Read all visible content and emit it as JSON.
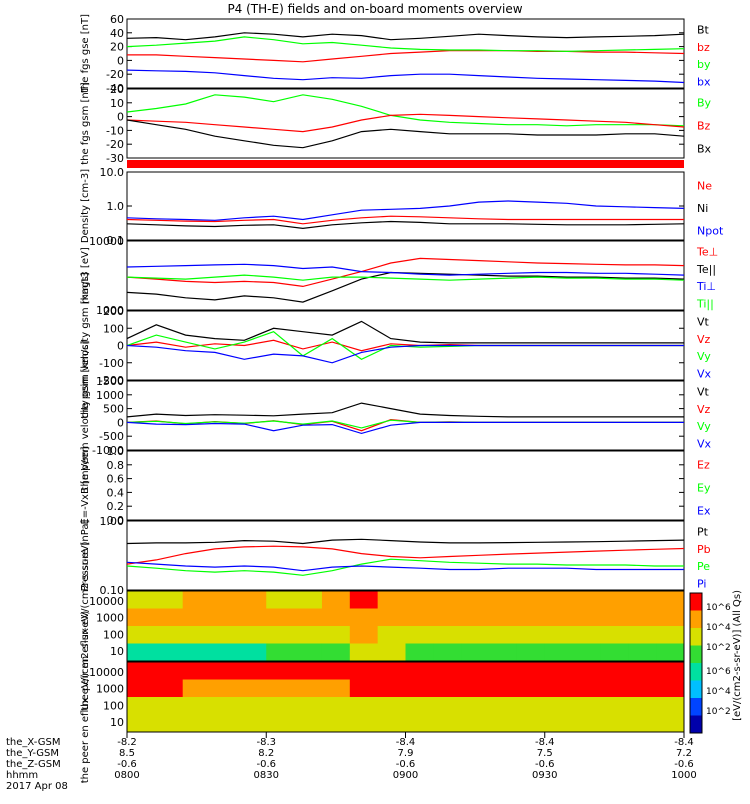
{
  "title": "P4 (TH-E) fields and on-board moments overview",
  "colorbar_label": "[eV/(cm2-s-sr-eV)] (All Qs)",
  "colorbar_ticks": [
    "10^6",
    "10^4",
    "10^2"
  ],
  "footer_row_labels": [
    "the_X-GSM",
    "the_Y-GSM",
    "the_Z-GSM",
    "hhmm",
    "2017 Apr 08"
  ],
  "footer_columns": [
    {
      "x": "-8.2",
      "y": "8.5",
      "z": "-0.6",
      "t": "0800"
    },
    {
      "x": "-8.3",
      "y": "8.2",
      "z": "-0.6",
      "t": "0830"
    },
    {
      "x": "-8.4",
      "y": "7.9",
      "z": "-0.6",
      "t": "0900"
    },
    {
      "x": "-8.4",
      "y": "7.5",
      "z": "-0.6",
      "t": "0930"
    },
    {
      "x": "-8.4",
      "y": "7.2",
      "z": "-0.6",
      "t": "1000"
    }
  ],
  "colors": {
    "black": "#000000",
    "red": "#ff0000",
    "green": "#00ff00",
    "blue": "#0000ff"
  },
  "chart_data": {
    "type": "line",
    "x_range": [
      "0800",
      "1000"
    ],
    "panels": [
      {
        "ylabel": "the fgs gse [nT]",
        "ylim": [
          -40,
          60
        ],
        "yticks": [
          "60",
          "40",
          "20",
          "0",
          "-20",
          "-40"
        ],
        "series": [
          {
            "name": "Bt",
            "color": "black",
            "values": [
              32,
              33,
              30,
              34,
              40,
              38,
              34,
              38,
              36,
              30,
              32,
              35,
              38,
              36,
              34,
              33,
              34,
              35,
              36,
              38
            ]
          },
          {
            "name": "bz",
            "color": "red",
            "values": [
              8,
              8,
              6,
              4,
              2,
              0,
              -2,
              2,
              6,
              10,
              12,
              14,
              14,
              14,
              13,
              13,
              12,
              12,
              11,
              10
            ]
          },
          {
            "name": "by",
            "color": "green",
            "values": [
              20,
              22,
              25,
              28,
              34,
              30,
              24,
              26,
              22,
              18,
              16,
              15,
              15,
              14,
              14,
              13,
              14,
              15,
              16,
              17
            ]
          },
          {
            "name": "bx",
            "color": "blue",
            "values": [
              -14,
              -15,
              -16,
              -18,
              -22,
              -26,
              -28,
              -25,
              -26,
              -22,
              -20,
              -20,
              -22,
              -24,
              -26,
              -27,
              -28,
              -29,
              -30,
              -32
            ]
          }
        ]
      },
      {
        "ylabel": "the fgs gsm [nT]",
        "ylim": [
          -35,
          25
        ],
        "yticks": [
          "20",
          "10",
          "0",
          "-10",
          "-20",
          "-30"
        ],
        "series": [
          {
            "name": "By",
            "color": "green",
            "values": [
              5,
              8,
              12,
              20,
              18,
              14,
              20,
              16,
              10,
              2,
              -2,
              -4,
              -5,
              -6,
              -6,
              -7,
              -6,
              -6,
              -6,
              -7
            ]
          },
          {
            "name": "Bz",
            "color": "red",
            "values": [
              -2,
              -3,
              -4,
              -6,
              -8,
              -10,
              -12,
              -8,
              -2,
              2,
              3,
              2,
              1,
              0,
              -1,
              -2,
              -3,
              -4,
              -6,
              -8
            ]
          },
          {
            "name": "Bx",
            "color": "black",
            "values": [
              -2,
              -6,
              -10,
              -16,
              -20,
              -24,
              -26,
              -20,
              -12,
              -10,
              -12,
              -14,
              -14,
              -14,
              -15,
              -15,
              -15,
              -14,
              -14,
              -16
            ]
          }
        ]
      },
      {
        "ylabel": "Density [cm-3]",
        "ylim": [
          0.1,
          10.0
        ],
        "log": true,
        "yticks": [
          "10.0",
          "1.0",
          "0.1"
        ],
        "series": [
          {
            "name": "Ne",
            "color": "red",
            "values": [
              0.4,
              0.38,
              0.36,
              0.35,
              0.38,
              0.4,
              0.3,
              0.38,
              0.45,
              0.5,
              0.48,
              0.45,
              0.42,
              0.4,
              0.4,
              0.4,
              0.4,
              0.4,
              0.4,
              0.4
            ]
          },
          {
            "name": "Ni",
            "color": "black",
            "values": [
              0.3,
              0.28,
              0.26,
              0.25,
              0.27,
              0.28,
              0.22,
              0.28,
              0.32,
              0.35,
              0.33,
              0.3,
              0.3,
              0.3,
              0.29,
              0.28,
              0.28,
              0.28,
              0.29,
              0.3
            ]
          },
          {
            "name": "Npot",
            "color": "blue",
            "values": [
              0.45,
              0.42,
              0.4,
              0.38,
              0.45,
              0.5,
              0.4,
              0.55,
              0.75,
              0.8,
              0.85,
              1.0,
              1.3,
              1.4,
              1.3,
              1.2,
              1.0,
              0.95,
              0.9,
              0.85
            ]
          }
        ]
      },
      {
        "ylabel": "magt3 [eV]",
        "ylim": [
          1000,
          10000
        ],
        "log": true,
        "yticks": [
          "10000",
          "1000"
        ],
        "series": [
          {
            "name": "Te⊥",
            "color": "red",
            "values": [
              3000,
              2800,
              2600,
              2500,
              2600,
              2500,
              2200,
              2800,
              3600,
              4800,
              5600,
              5400,
              5200,
              5000,
              4800,
              4700,
              4600,
              4500,
              4500,
              4400
            ]
          },
          {
            "name": "Te||",
            "color": "black",
            "values": [
              1800,
              1700,
              1500,
              1400,
              1600,
              1500,
              1300,
              1900,
              2800,
              3500,
              3400,
              3300,
              3200,
              3100,
              3100,
              3000,
              3000,
              2900,
              2900,
              2800
            ]
          },
          {
            "name": "Ti⊥",
            "color": "blue",
            "values": [
              4200,
              4300,
              4400,
              4500,
              4600,
              4400,
              4000,
              4200,
              3600,
              3500,
              3300,
              3200,
              3300,
              3400,
              3500,
              3500,
              3400,
              3400,
              3300,
              3200
            ]
          },
          {
            "name": "Ti||",
            "color": "green",
            "values": [
              3000,
              2900,
              2800,
              3000,
              3200,
              3000,
              2700,
              3000,
              3000,
              2900,
              2800,
              2700,
              2800,
              2900,
              3000,
              2900,
              2900,
              2800,
              2800,
              2700
            ]
          }
        ]
      },
      {
        "ylabel": "the peim velocity gsm [km/s]",
        "ylim": [
          -200,
          200
        ],
        "yticks": [
          "200",
          "100",
          "0",
          "-100",
          "-200"
        ],
        "series": [
          {
            "name": "Vt",
            "color": "black",
            "values": [
              40,
              120,
              60,
              40,
              30,
              100,
              80,
              60,
              140,
              40,
              20,
              15,
              15,
              15,
              15,
              15,
              15,
              15,
              15,
              15
            ]
          },
          {
            "name": "Vz",
            "color": "red",
            "values": [
              0,
              20,
              -10,
              10,
              0,
              30,
              -20,
              20,
              -30,
              10,
              0,
              5,
              0,
              0,
              0,
              0,
              0,
              0,
              0,
              0
            ]
          },
          {
            "name": "Vy",
            "color": "green",
            "values": [
              0,
              60,
              20,
              -20,
              20,
              80,
              -60,
              40,
              -80,
              0,
              -10,
              -5,
              0,
              0,
              0,
              0,
              0,
              0,
              0,
              0
            ]
          },
          {
            "name": "Vx",
            "color": "blue",
            "values": [
              0,
              -10,
              -30,
              -40,
              -80,
              -50,
              -60,
              -100,
              -40,
              -10,
              0,
              0,
              0,
              0,
              0,
              0,
              0,
              0,
              0,
              0
            ]
          }
        ]
      },
      {
        "ylabel": "the peem velocity gsm [km/s]",
        "ylim": [
          -1000,
          1500
        ],
        "yticks": [
          "1500",
          "1000",
          "500",
          "0",
          "-500",
          "-1000"
        ],
        "series": [
          {
            "name": "Vt",
            "color": "black",
            "values": [
              200,
              300,
              250,
              280,
              260,
              240,
              300,
              350,
              700,
              500,
              300,
              250,
              220,
              200,
              200,
              200,
              200,
              200,
              200,
              200
            ]
          },
          {
            "name": "Vz",
            "color": "red",
            "values": [
              0,
              50,
              -50,
              30,
              -40,
              60,
              -80,
              40,
              -300,
              100,
              0,
              20,
              0,
              0,
              0,
              0,
              0,
              0,
              0,
              0
            ]
          },
          {
            "name": "Vy",
            "color": "green",
            "values": [
              0,
              40,
              -40,
              20,
              -30,
              50,
              -60,
              50,
              -200,
              80,
              0,
              10,
              0,
              0,
              0,
              0,
              0,
              0,
              0,
              0
            ]
          },
          {
            "name": "Vx",
            "color": "blue",
            "values": [
              0,
              -60,
              -80,
              -40,
              -60,
              -300,
              -100,
              -80,
              -400,
              -100,
              0,
              0,
              0,
              0,
              0,
              0,
              0,
              0,
              0,
              0
            ]
          }
        ]
      },
      {
        "ylabel": "E=-VxB [mV/m]",
        "ylim": [
          0,
          1
        ],
        "yticks": [
          "1.0",
          "0.8",
          "0.6",
          "0.4",
          "0.2",
          "0.0"
        ],
        "series": [
          {
            "name": "Ez",
            "color": "red",
            "values": []
          },
          {
            "name": "Ey",
            "color": "green",
            "values": []
          },
          {
            "name": "Ex",
            "color": "blue",
            "values": []
          }
        ]
      },
      {
        "ylabel": "Pressure [nPa]",
        "ylim": [
          0.05,
          2.0
        ],
        "log": true,
        "yticks": [
          "1.00",
          "0.10"
        ],
        "series": [
          {
            "name": "Pt",
            "color": "black",
            "values": [
              0.6,
              0.62,
              0.62,
              0.64,
              0.7,
              0.68,
              0.6,
              0.72,
              0.75,
              0.7,
              0.65,
              0.62,
              0.62,
              0.63,
              0.64,
              0.65,
              0.66,
              0.68,
              0.7,
              0.72
            ]
          },
          {
            "name": "Pb",
            "color": "red",
            "values": [
              0.2,
              0.25,
              0.35,
              0.45,
              0.5,
              0.52,
              0.5,
              0.45,
              0.35,
              0.3,
              0.28,
              0.3,
              0.32,
              0.34,
              0.36,
              0.38,
              0.4,
              0.42,
              0.44,
              0.46
            ]
          },
          {
            "name": "Pe",
            "color": "green",
            "values": [
              0.18,
              0.16,
              0.14,
              0.13,
              0.14,
              0.13,
              0.11,
              0.14,
              0.2,
              0.26,
              0.24,
              0.22,
              0.21,
              0.2,
              0.2,
              0.19,
              0.19,
              0.19,
              0.18,
              0.18
            ]
          },
          {
            "name": "Pi",
            "color": "blue",
            "values": [
              0.22,
              0.2,
              0.18,
              0.17,
              0.18,
              0.17,
              0.14,
              0.17,
              0.18,
              0.17,
              0.16,
              0.15,
              0.15,
              0.16,
              0.16,
              0.16,
              0.15,
              0.15,
              0.15,
              0.15
            ]
          }
        ]
      }
    ],
    "spectrograms": [
      {
        "ylabel": "the peir en eflux eV/(cm2-s-sr-eV)",
        "yticks": [
          "10000",
          "1000",
          "100",
          "10"
        ],
        "rows": [
          [
            4,
            4,
            5,
            5,
            5,
            4,
            4,
            5,
            6,
            5,
            5,
            5,
            5,
            5,
            5,
            5,
            5,
            5,
            5,
            5
          ],
          [
            5,
            5,
            5,
            5,
            5,
            5,
            5,
            5,
            5,
            5,
            5,
            5,
            5,
            5,
            5,
            5,
            5,
            5,
            5,
            5
          ],
          [
            4,
            4,
            4,
            4,
            4,
            4,
            4,
            4,
            5,
            4,
            4,
            4,
            4,
            4,
            4,
            4,
            4,
            4,
            4,
            4
          ],
          [
            2,
            2,
            2,
            2,
            2,
            3,
            3,
            3,
            4,
            4,
            3,
            3,
            3,
            3,
            3,
            3,
            3,
            3,
            3,
            3
          ]
        ]
      },
      {
        "ylabel": "the peer en eflux eV/(cm2-s-sr-eV)",
        "yticks": [
          "10000",
          "1000",
          "100",
          "10"
        ],
        "rows": [
          [
            6,
            6,
            6,
            6,
            6,
            6,
            6,
            6,
            6,
            6,
            6,
            6,
            6,
            6,
            6,
            6,
            6,
            6,
            6,
            6
          ],
          [
            6,
            6,
            5,
            5,
            5,
            5,
            5,
            5,
            6,
            6,
            6,
            6,
            6,
            6,
            6,
            6,
            6,
            6,
            6,
            6
          ],
          [
            4,
            4,
            4,
            4,
            4,
            4,
            4,
            4,
            4,
            4,
            4,
            4,
            4,
            4,
            4,
            4,
            4,
            4,
            4,
            4
          ],
          [
            4,
            4,
            4,
            4,
            4,
            4,
            4,
            4,
            4,
            4,
            4,
            4,
            4,
            4,
            4,
            4,
            4,
            4,
            4,
            4
          ]
        ]
      }
    ]
  }
}
